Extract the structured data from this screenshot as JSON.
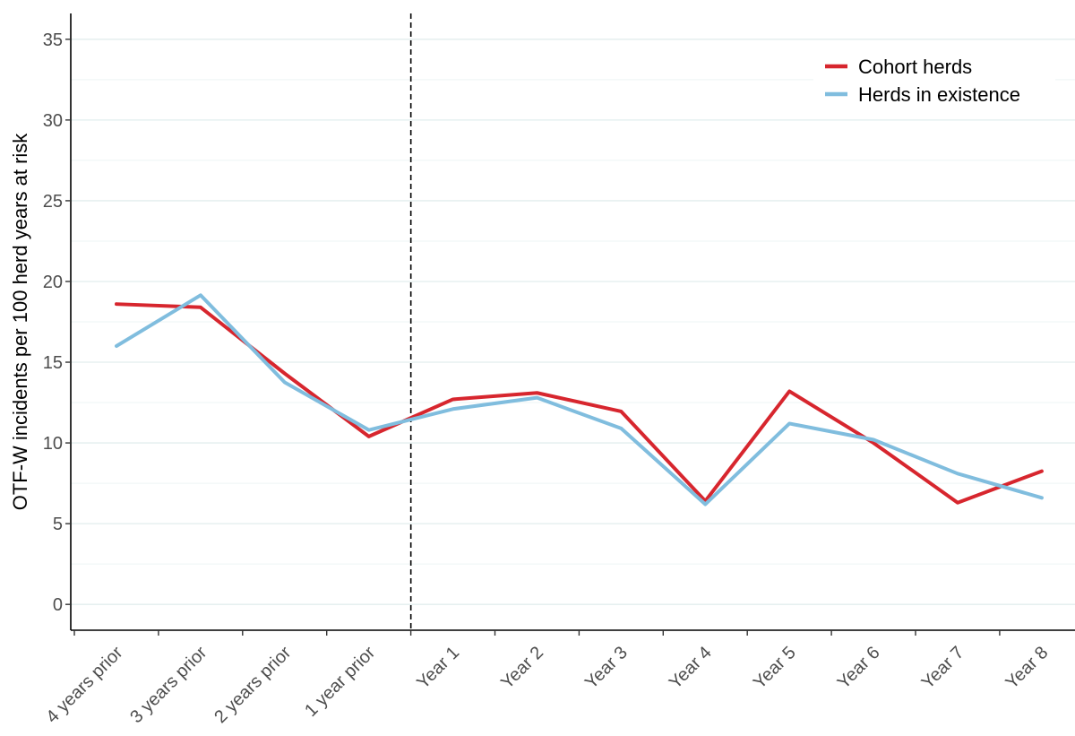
{
  "chart_data": {
    "type": "line",
    "title": "",
    "xlabel": "",
    "ylabel": "OTF-W incidents per 100 herd years at risk",
    "categories": [
      "4 years prior",
      "3 years prior",
      "2 years prior",
      "1 year prior",
      "Year 1",
      "Year 2",
      "Year 3",
      "Year 4",
      "Year 5",
      "Year 6",
      "Year 7",
      "Year 8"
    ],
    "ylim": [
      -1.6,
      36.6
    ],
    "yticks": [
      0,
      5,
      10,
      15,
      20,
      25,
      30,
      35
    ],
    "grid": true,
    "vline_between": [
      "1 year prior",
      "Year 1"
    ],
    "legend_position": "top-right",
    "series": [
      {
        "name": "Cohort herds",
        "color": "#d7262e",
        "values": [
          18.6,
          18.4,
          14.3,
          10.4,
          12.7,
          13.1,
          11.95,
          6.4,
          13.2,
          10.0,
          6.3,
          8.25
        ]
      },
      {
        "name": "Herds in existence",
        "color": "#80bdde",
        "values": [
          16.0,
          19.15,
          13.75,
          10.8,
          12.1,
          12.8,
          10.9,
          6.2,
          11.2,
          10.2,
          8.1,
          6.6
        ]
      }
    ]
  }
}
